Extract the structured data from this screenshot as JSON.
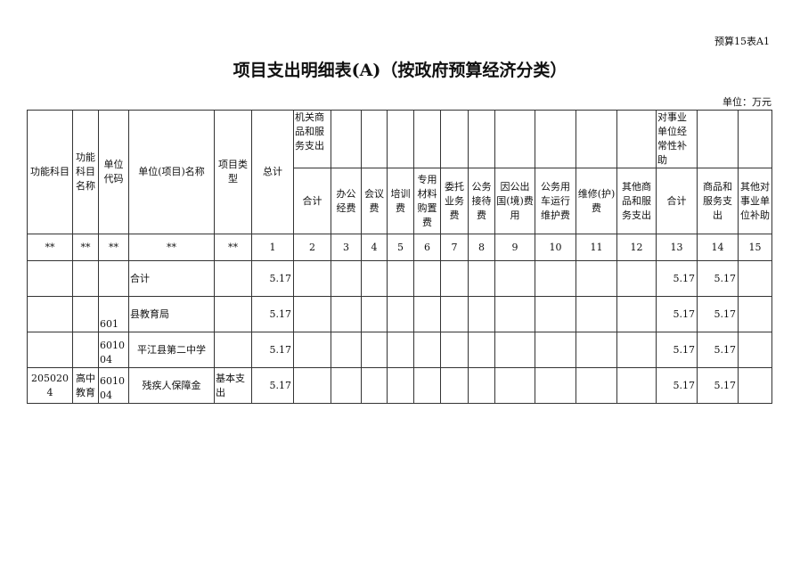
{
  "form_code": "预算15表A1",
  "title": "项目支出明细表(A)（按政府预算经济分类）",
  "unit": "单位：万元",
  "header": {
    "fixed": [
      "功能科目",
      "功能科目名称",
      "单位代码",
      "单位(项目)名称",
      "项目类型",
      "总计"
    ],
    "group1": "机关商品和服务支出",
    "group1_cols": [
      "合计",
      "办公经费",
      "会议费",
      "培训费",
      "专用材料购置费",
      "委托业务费",
      "公务接待费",
      "因公出国(境)费用",
      "公务用车运行维护费",
      "维修(护)费",
      "其他商品和服务支出"
    ],
    "group2": "对事业单位经常性补助",
    "group2_cols": [
      "合计",
      "商品和服务支出",
      "其他对事业单位补助"
    ],
    "index_row": [
      "**",
      "**",
      "**",
      "**",
      "**",
      "1",
      "2",
      "3",
      "4",
      "5",
      "6",
      "7",
      "8",
      "9",
      "10",
      "11",
      "12",
      "13",
      "14",
      "15"
    ]
  },
  "rows": [
    {
      "code": "",
      "name": "",
      "unit_code": "",
      "unit_name": "合计",
      "type": "",
      "total": "5.17",
      "c13": "5.17",
      "c14": "5.17"
    },
    {
      "code": "",
      "name": "",
      "unit_code": "601",
      "unit_name": "县教育局",
      "type": "",
      "total": "5.17",
      "c13": "5.17",
      "c14": "5.17"
    },
    {
      "code": "",
      "name": "",
      "unit_code": "601004",
      "unit_name": "平江县第二中学",
      "type": "",
      "total": "5.17",
      "c13": "5.17",
      "c14": "5.17"
    },
    {
      "code": "2050204",
      "name": "高中教育",
      "unit_code": "601004",
      "unit_name": "残疾人保障金",
      "type": "基本支出",
      "total": "5.17",
      "c13": "5.17",
      "c14": "5.17"
    }
  ]
}
